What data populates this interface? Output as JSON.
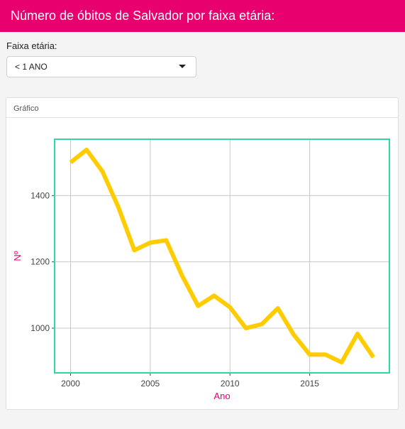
{
  "header": {
    "title": "Número de óbitos de Salvador por faixa etária:"
  },
  "filter": {
    "label": "Faixa etária:",
    "selected": "< 1 ANO"
  },
  "panel": {
    "title": "Gráfico"
  },
  "colors": {
    "header_bg": "#e8006e",
    "line": "#ffcc00",
    "plot_border": "#33d6a6",
    "axis_title": "#e8006e"
  },
  "icons": {
    "select_caret": "caret-down-icon"
  },
  "chart_data": {
    "type": "line",
    "xlabel": "Ano",
    "ylabel": "Nº",
    "xlim": [
      1999,
      2020
    ],
    "ylim": [
      865,
      1570
    ],
    "x_ticks": [
      2000,
      2005,
      2010,
      2015
    ],
    "y_ticks": [
      1000,
      1200,
      1400
    ],
    "grid": true,
    "series": [
      {
        "x": [
          2000,
          2001,
          2002,
          2003,
          2004,
          2005,
          2006,
          2007,
          2008,
          2009,
          2010,
          2011,
          2012,
          2013,
          2014,
          2015,
          2016,
          2017,
          2018,
          2019
        ],
        "values": [
          1500,
          1538,
          1473,
          1365,
          1235,
          1258,
          1265,
          1158,
          1067,
          1098,
          1063,
          1000,
          1012,
          1060,
          980,
          920,
          920,
          897,
          983,
          912
        ]
      }
    ]
  }
}
